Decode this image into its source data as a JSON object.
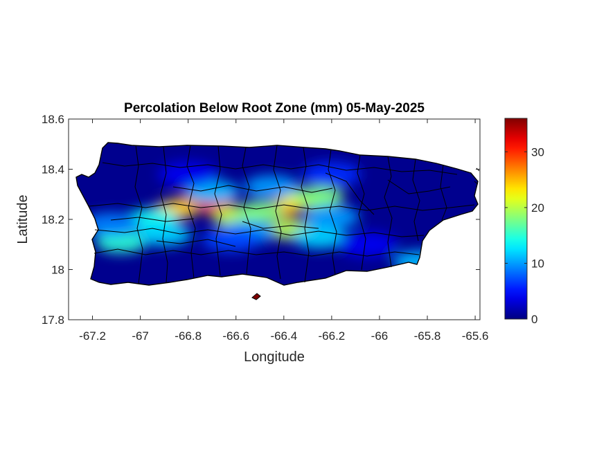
{
  "chart_data": {
    "type": "heatmap",
    "title": "Percolation Below Root Zone (mm) 05-May-2025",
    "xlabel": "Longitude",
    "ylabel": "Latitude",
    "xlim": [
      -67.3,
      -65.58
    ],
    "ylim": [
      17.8,
      18.6
    ],
    "x_ticks": [
      -67.2,
      -67,
      -66.8,
      -66.6,
      -66.4,
      -66.2,
      -66,
      -65.8,
      -65.6
    ],
    "x_tick_labels": [
      "-67.2",
      "-67",
      "-66.8",
      "-66.6",
      "-66.4",
      "-66.2",
      "-66",
      "-65.8",
      "-65.6"
    ],
    "y_ticks": [
      17.8,
      18,
      18.2,
      18.4,
      18.6
    ],
    "y_tick_labels": [
      "17.8",
      "18",
      "18.2",
      "18.4",
      "18.6"
    ],
    "colorbar": {
      "colormap": "jet",
      "range": [
        0,
        36
      ],
      "ticks": [
        0,
        10,
        20,
        30
      ],
      "tick_labels": [
        "0",
        "10",
        "20",
        "30"
      ]
    },
    "background_value": 0.5,
    "hotspots": [
      {
        "lon": -66.78,
        "lat": 18.27,
        "value": 33
      },
      {
        "lon": -66.68,
        "lat": 18.25,
        "value": 30
      },
      {
        "lon": -66.85,
        "lat": 18.24,
        "value": 24
      },
      {
        "lon": -66.42,
        "lat": 18.24,
        "value": 27
      },
      {
        "lon": -66.33,
        "lat": 18.28,
        "value": 22
      },
      {
        "lon": -66.6,
        "lat": 18.21,
        "value": 20
      },
      {
        "lon": -66.5,
        "lat": 18.23,
        "value": 18
      },
      {
        "lon": -66.95,
        "lat": 18.2,
        "value": 14
      },
      {
        "lon": -66.25,
        "lat": 18.29,
        "value": 18
      },
      {
        "lon": -66.38,
        "lat": 18.16,
        "value": 20
      },
      {
        "lon": -67.08,
        "lat": 18.11,
        "value": 15
      },
      {
        "lon": -66.9,
        "lat": 18.14,
        "value": 12
      },
      {
        "lon": -66.55,
        "lat": 18.15,
        "value": 10
      },
      {
        "lon": -66.25,
        "lat": 18.13,
        "value": 12
      },
      {
        "lon": -66.2,
        "lat": 18.21,
        "value": 10
      },
      {
        "lon": -66.7,
        "lat": 18.31,
        "value": 11
      },
      {
        "lon": -66.45,
        "lat": 18.33,
        "value": 10
      },
      {
        "lon": -67.12,
        "lat": 18.18,
        "value": 9
      },
      {
        "lon": -66.62,
        "lat": 18.12,
        "value": 7
      },
      {
        "lon": -65.83,
        "lat": 18.03,
        "value": 11
      },
      {
        "lon": -66.05,
        "lat": 18.1,
        "value": 4
      },
      {
        "lon": -66.8,
        "lat": 18.38,
        "value": 4
      },
      {
        "lon": -66.2,
        "lat": 18.38,
        "value": 6
      }
    ],
    "colors": {
      "land_base": "#7f0000",
      "municipal_borders": "#000000",
      "axes_background": "#ffffff"
    }
  }
}
